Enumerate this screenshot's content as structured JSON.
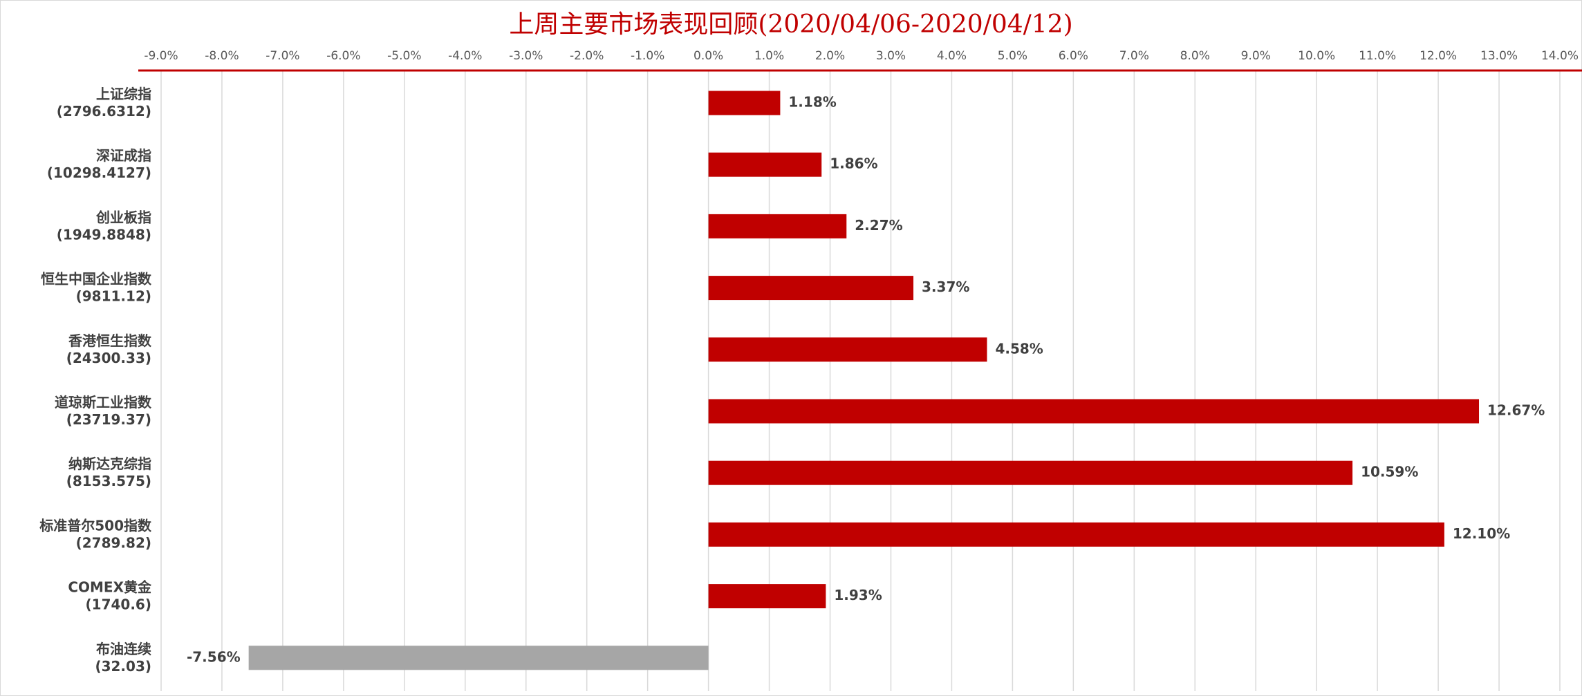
{
  "chart_data": {
    "type": "bar",
    "orientation": "horizontal",
    "title": "上周主要市场表现回顾(2020/04/06-2020/04/12)",
    "categories": [
      [
        "上证综指",
        "(2796.6312)"
      ],
      [
        "深证成指",
        "(10298.4127)"
      ],
      [
        "创业板指",
        "(1949.8848)"
      ],
      [
        "恒生中国企业指数",
        "(9811.12)"
      ],
      [
        "香港恒生指数",
        "(24300.33)"
      ],
      [
        "道琼斯工业指数",
        "(23719.37)"
      ],
      [
        "纳斯达克综指",
        "(8153.575)"
      ],
      [
        "标准普尔500指数",
        "(2789.82)"
      ],
      [
        "COMEX黄金",
        "(1740.6)"
      ],
      [
        "布油连续",
        "(32.03)"
      ]
    ],
    "values": [
      1.18,
      1.86,
      2.27,
      3.37,
      4.58,
      12.67,
      10.59,
      12.1,
      1.93,
      -7.56
    ],
    "value_labels": [
      "1.18%",
      "1.86%",
      "2.27%",
      "3.37%",
      "4.58%",
      "12.67%",
      "10.59%",
      "12.10%",
      "1.93%",
      "-7.56%"
    ],
    "colors": [
      "#c00000",
      "#c00000",
      "#c00000",
      "#c00000",
      "#c00000",
      "#c00000",
      "#c00000",
      "#c00000",
      "#c00000",
      "#a6a6a6"
    ],
    "xlim": [
      -9,
      14
    ],
    "xticks": [
      {
        "value": -9,
        "label": "-9.0%"
      },
      {
        "value": -8,
        "label": "-8.0%"
      },
      {
        "value": -7,
        "label": "-7.0%"
      },
      {
        "value": -6,
        "label": "-6.0%"
      },
      {
        "value": -5,
        "label": "-5.0%"
      },
      {
        "value": -4,
        "label": "-4.0%"
      },
      {
        "value": -3,
        "label": "-3.0%"
      },
      {
        "value": -2,
        "label": "-2.0%"
      },
      {
        "value": -1,
        "label": "-1.0%"
      },
      {
        "value": 0,
        "label": "0.0%"
      },
      {
        "value": 1,
        "label": "1.0%"
      },
      {
        "value": 2,
        "label": "2.0%"
      },
      {
        "value": 3,
        "label": "3.0%"
      },
      {
        "value": 4,
        "label": "4.0%"
      },
      {
        "value": 5,
        "label": "5.0%"
      },
      {
        "value": 6,
        "label": "6.0%"
      },
      {
        "value": 7,
        "label": "7.0%"
      },
      {
        "value": 8,
        "label": "8.0%"
      },
      {
        "value": 9,
        "label": "9.0%"
      },
      {
        "value": 10,
        "label": "10.0%"
      },
      {
        "value": 11,
        "label": "11.0%"
      },
      {
        "value": 12,
        "label": "12.0%"
      },
      {
        "value": 13,
        "label": "13.0%"
      },
      {
        "value": 14,
        "label": "14.0%"
      }
    ],
    "grid": true
  }
}
